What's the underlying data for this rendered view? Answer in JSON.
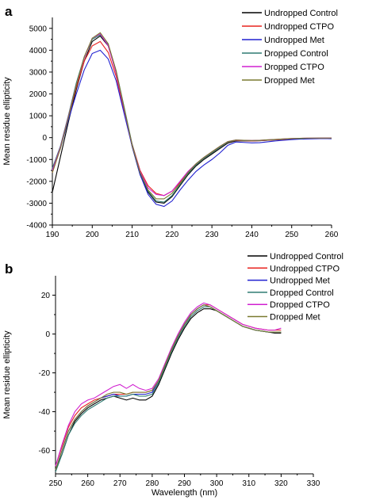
{
  "chart_data": [
    {
      "type": "line",
      "panel_label": "a",
      "xlabel": "",
      "ylabel": "Mean residue ellipticity",
      "xlim": [
        190,
        260
      ],
      "ylim": [
        -4000,
        5500
      ],
      "xticks": [
        "190",
        "200",
        "210",
        "220",
        "230",
        "240",
        "250",
        "260"
      ],
      "yticks": [
        "-4000",
        "-3000",
        "-2000",
        "-1000",
        "0",
        "1000",
        "2000",
        "3000",
        "4000",
        "5000"
      ],
      "grid": false,
      "legend_position": "top-right",
      "x": [
        190,
        192,
        194,
        196,
        198,
        200,
        202,
        204,
        206,
        208,
        210,
        212,
        214,
        216,
        218,
        220,
        222,
        224,
        226,
        228,
        230,
        232,
        234,
        236,
        238,
        240,
        242,
        244,
        246,
        248,
        250,
        252,
        254,
        256,
        258,
        260
      ],
      "series": [
        {
          "name": "Undropped Control",
          "color": "#000000",
          "values": [
            -2500,
            -900,
            700,
            2200,
            3500,
            4400,
            4650,
            4200,
            3000,
            1300,
            -400,
            -1700,
            -2500,
            -2950,
            -3000,
            -2700,
            -2200,
            -1700,
            -1300,
            -1000,
            -750,
            -500,
            -250,
            -150,
            -150,
            -150,
            -140,
            -120,
            -100,
            -80,
            -60,
            -50,
            -40,
            -30,
            -20,
            -20
          ]
        },
        {
          "name": "Undropped CTPO",
          "color": "#e8231f",
          "values": [
            -1600,
            -500,
            900,
            2300,
            3500,
            4200,
            4400,
            3900,
            2800,
            1200,
            -300,
            -1500,
            -2200,
            -2550,
            -2650,
            -2450,
            -2050,
            -1600,
            -1250,
            -950,
            -700,
            -450,
            -200,
            -130,
            -140,
            -150,
            -140,
            -120,
            -100,
            -80,
            -60,
            -50,
            -40,
            -30,
            -20,
            -20
          ]
        },
        {
          "name": "Undropped Met",
          "color": "#2020d0",
          "values": [
            -1500,
            -500,
            800,
            2000,
            3100,
            3850,
            4000,
            3600,
            2600,
            1100,
            -400,
            -1700,
            -2600,
            -3050,
            -3150,
            -2900,
            -2400,
            -1950,
            -1550,
            -1250,
            -1000,
            -700,
            -350,
            -200,
            -220,
            -240,
            -230,
            -190,
            -150,
            -120,
            -90,
            -70,
            -60,
            -50,
            -40,
            -50
          ]
        },
        {
          "name": "Dropped Control",
          "color": "#2e7a72",
          "values": [
            -1400,
            -400,
            1000,
            2500,
            3700,
            4500,
            4700,
            4250,
            3050,
            1400,
            -300,
            -1600,
            -2450,
            -2900,
            -2950,
            -2650,
            -2150,
            -1650,
            -1250,
            -950,
            -700,
            -450,
            -200,
            -120,
            -130,
            -140,
            -130,
            -110,
            -90,
            -70,
            -50,
            -40,
            -30,
            -20,
            -20,
            -20
          ]
        },
        {
          "name": "Dropped CTPO",
          "color": "#d020d0",
          "values": [
            -1500,
            -450,
            950,
            2400,
            3650,
            4550,
            4750,
            4200,
            2950,
            1300,
            -350,
            -1550,
            -2300,
            -2600,
            -2650,
            -2450,
            -2000,
            -1550,
            -1200,
            -900,
            -650,
            -400,
            -180,
            -110,
            -120,
            -130,
            -120,
            -100,
            -80,
            -60,
            -40,
            -30,
            -20,
            -20,
            -20,
            -20
          ]
        },
        {
          "name": "Dropped Met",
          "color": "#7a7a30",
          "values": [
            -1600,
            -500,
            900,
            2400,
            3700,
            4550,
            4800,
            4300,
            3050,
            1350,
            -350,
            -1600,
            -2400,
            -2800,
            -2800,
            -2550,
            -2100,
            -1600,
            -1200,
            -900,
            -650,
            -400,
            -180,
            -110,
            -120,
            -130,
            -120,
            -100,
            -80,
            -60,
            -40,
            -30,
            -20,
            -20,
            -20,
            -20
          ]
        }
      ]
    },
    {
      "type": "line",
      "panel_label": "b",
      "xlabel": "Wavelength (nm)",
      "ylabel": "Mean residue ellipticity",
      "xlim": [
        250,
        330
      ],
      "ylim": [
        -72,
        30
      ],
      "xticks": [
        "250",
        "260",
        "270",
        "280",
        "290",
        "300",
        "310",
        "320",
        "330"
      ],
      "yticks": [
        "-60",
        "-40",
        "-20",
        "0",
        "20"
      ],
      "grid": false,
      "legend_position": "top-right",
      "x": [
        250,
        252,
        254,
        256,
        258,
        260,
        262,
        264,
        266,
        268,
        270,
        272,
        274,
        276,
        278,
        280,
        282,
        284,
        286,
        288,
        290,
        292,
        294,
        296,
        298,
        300,
        302,
        304,
        306,
        308,
        310,
        312,
        314,
        316,
        318,
        320
      ],
      "series": [
        {
          "name": "Undropped Control",
          "color": "#000000",
          "values": [
            -70,
            -62,
            -52,
            -45,
            -41,
            -38,
            -36,
            -34,
            -33,
            -32,
            -33,
            -34,
            -33,
            -34,
            -34,
            -32,
            -26,
            -18,
            -10,
            -3,
            3,
            8,
            11,
            13,
            13,
            12,
            10,
            8,
            6,
            4,
            3,
            2,
            1.5,
            1,
            0.5,
            0.5
          ]
        },
        {
          "name": "Undropped CTPO",
          "color": "#e8231f",
          "values": [
            -68,
            -58,
            -48,
            -42,
            -38,
            -36,
            -34,
            -33,
            -32,
            -31,
            -31,
            -31,
            -30,
            -30,
            -30,
            -29,
            -24,
            -16,
            -8,
            -1,
            5,
            10,
            13,
            15,
            15,
            13,
            11,
            9,
            7,
            5,
            4,
            3,
            2.5,
            2,
            2,
            2
          ]
        },
        {
          "name": "Undropped Met",
          "color": "#2020d0",
          "values": [
            -70,
            -60,
            -50,
            -44,
            -40,
            -37,
            -35,
            -33,
            -32,
            -31,
            -32,
            -32,
            -31,
            -31,
            -31,
            -30,
            -24,
            -16,
            -8,
            -1,
            5,
            10,
            13,
            15,
            14,
            12,
            10,
            8,
            6,
            4,
            3,
            2,
            1.5,
            1,
            1,
            1
          ]
        },
        {
          "name": "Dropped Control",
          "color": "#2e7a72",
          "values": [
            -71,
            -62,
            -52,
            -46,
            -42,
            -39,
            -37,
            -35,
            -33,
            -32,
            -32,
            -32,
            -31,
            -32,
            -32,
            -31,
            -25,
            -17,
            -9,
            -2,
            4,
            9,
            12,
            14,
            14,
            12,
            10,
            8,
            6,
            4,
            3,
            2,
            1.5,
            1,
            1,
            1
          ]
        },
        {
          "name": "Dropped CTPO",
          "color": "#d020d0",
          "values": [
            -68,
            -57,
            -47,
            -40,
            -36,
            -34,
            -33,
            -31,
            -29,
            -27,
            -26,
            -28,
            -26,
            -28,
            -29,
            -28,
            -23,
            -15,
            -7,
            0,
            6,
            11,
            14,
            16,
            15,
            13,
            11,
            9,
            7,
            5,
            4,
            3,
            2.5,
            2,
            2,
            3
          ]
        },
        {
          "name": "Dropped Met",
          "color": "#7a7a30",
          "values": [
            -70,
            -60,
            -50,
            -44,
            -40,
            -37,
            -35,
            -33,
            -31,
            -30,
            -30,
            -31,
            -30,
            -30,
            -30,
            -29,
            -24,
            -16,
            -8,
            -1,
            5,
            10,
            13,
            15,
            14,
            12,
            10,
            8,
            6,
            4,
            3,
            2,
            1.5,
            1,
            1,
            1
          ]
        }
      ]
    }
  ]
}
